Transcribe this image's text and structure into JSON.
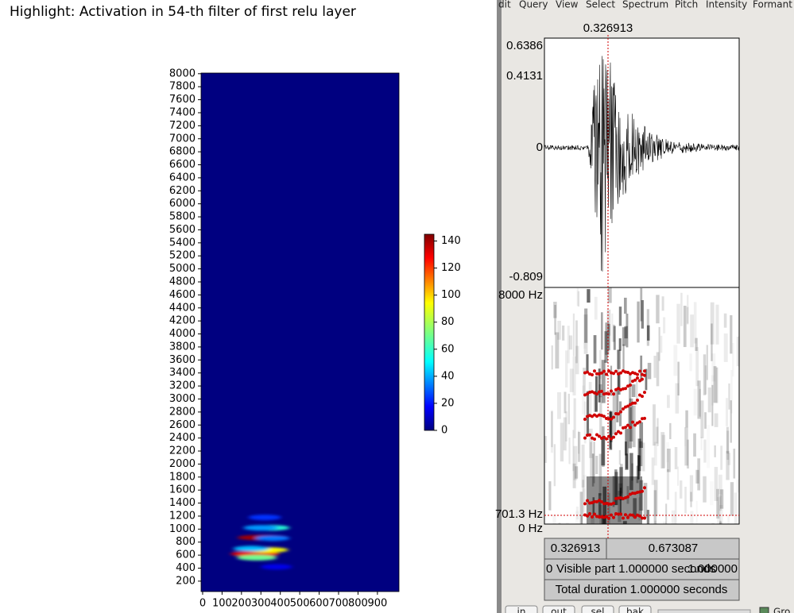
{
  "chart_data": {
    "type": "heatmap",
    "title": "Highlight: Activation in 54-th filter of first relu layer",
    "x": [
      310,
      270,
      330,
      350,
      300,
      320,
      280,
      360,
      250,
      380
    ],
    "y": [
      870,
      620,
      680,
      1020,
      1020,
      1180,
      560,
      860,
      700,
      420
    ],
    "values": [
      140,
      130,
      90,
      60,
      40,
      25,
      70,
      35,
      45,
      15
    ],
    "xlim": [
      -8,
      1011
    ],
    "ylim": [
      40,
      8010
    ],
    "xticks": [
      0,
      100,
      200,
      300,
      400,
      500,
      600,
      700,
      800,
      900
    ],
    "yticks": [
      200,
      400,
      600,
      800,
      1000,
      1200,
      1400,
      1600,
      1800,
      2000,
      2200,
      2400,
      2600,
      2800,
      3000,
      3200,
      3400,
      3600,
      3800,
      4000,
      4200,
      4400,
      4600,
      4800,
      5000,
      5200,
      5400,
      5600,
      5800,
      6000,
      6200,
      6400,
      6600,
      6800,
      7000,
      7200,
      7400,
      7600,
      7800,
      8000
    ],
    "clim": [
      0,
      145
    ],
    "cticks": [
      0,
      20,
      40,
      60,
      80,
      100,
      120,
      140
    ],
    "colormap": "jet"
  },
  "praat": {
    "menu": [
      "dit",
      "Query",
      "View",
      "Select",
      "Spectrum",
      "Pitch",
      "Intensity",
      "Formant"
    ],
    "cursor_time": "0.326913",
    "wave_max": "0.6386",
    "wave_cursor": "0.4131",
    "wave_zero": "0",
    "wave_min": "-0.809",
    "freq_max": "8000 Hz",
    "freq_cursor": "701.3 Hz",
    "freq_min": "0 Hz",
    "sel_left": "0.326913",
    "sel_right": "0.673087",
    "visible_start": "0",
    "visible": "Visible part 1.000000 seconds",
    "visible_end": "1.000000",
    "total": "Total duration 1.000000 seconds",
    "buttons": [
      "in",
      "out",
      "sel",
      "bak"
    ],
    "group": "Gro"
  }
}
